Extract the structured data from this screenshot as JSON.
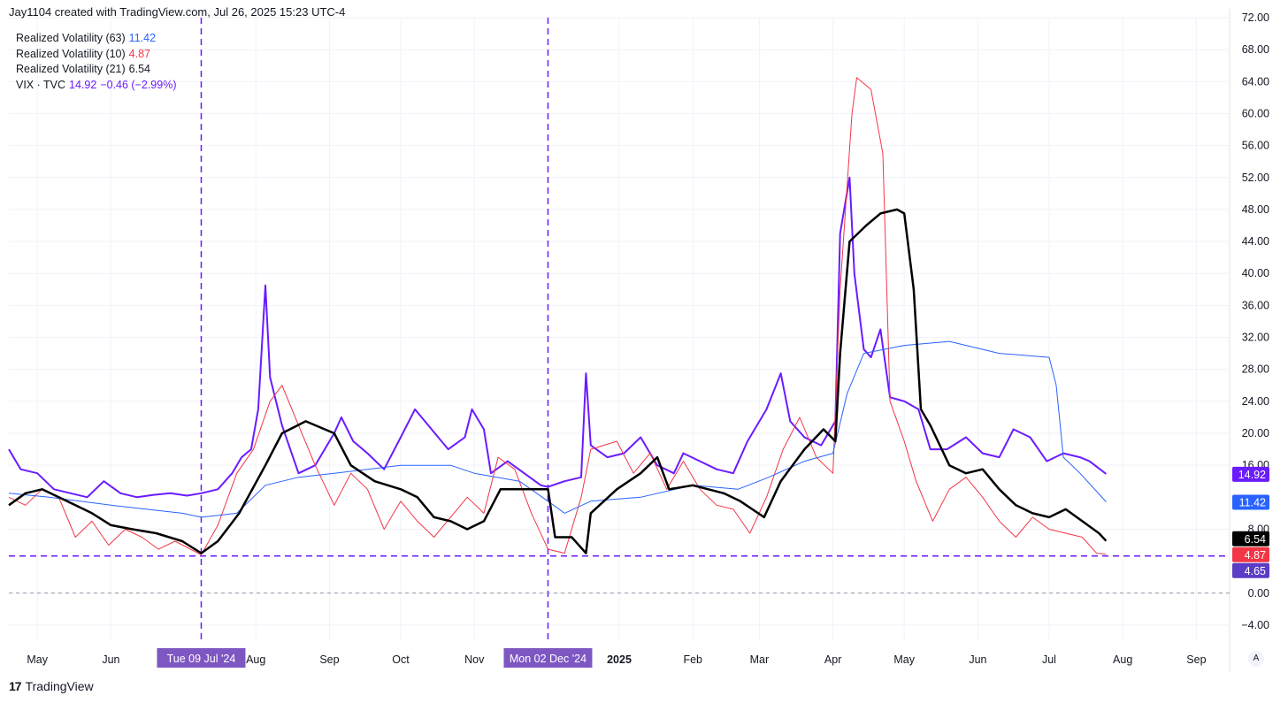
{
  "header": {
    "text": "Jay1104 created with TradingView.com, Jul 26, 2025 15:23 UTC-4"
  },
  "legend": [
    {
      "label": "Realized Volatility (63)",
      "value": "11.42",
      "color": "#2962ff"
    },
    {
      "label": "Realized Volatility (10)",
      "value": "4.87",
      "color": "#f23645"
    },
    {
      "label": "Realized Volatility (21)",
      "value": "6.54",
      "color": "#000000"
    },
    {
      "label": "VIX · TVC",
      "value": "14.92",
      "extra": "−0.46 (−2.99%)",
      "color": "#6a1bff"
    }
  ],
  "footer": {
    "brand": "TradingView",
    "logo_icon": "tradingview-logo-icon"
  },
  "auto_button": "A",
  "chart_data": {
    "type": "line",
    "y_ticks": [
      "72.00",
      "68.00",
      "64.00",
      "60.00",
      "56.00",
      "52.00",
      "48.00",
      "44.00",
      "40.00",
      "36.00",
      "32.00",
      "28.00",
      "24.00",
      "20.00",
      "16.00",
      "8.00",
      "0.00",
      "−4.00"
    ],
    "ylim": [
      -6,
      72
    ],
    "x_ticks": [
      {
        "label": "May",
        "date": "2024-05-01"
      },
      {
        "label": "Jun",
        "date": "2024-06-01"
      },
      {
        "label": "Aug",
        "date": "2024-08-01"
      },
      {
        "label": "Sep",
        "date": "2024-09-01"
      },
      {
        "label": "Oct",
        "date": "2024-10-01"
      },
      {
        "label": "Nov",
        "date": "2024-11-01"
      },
      {
        "label": "2025",
        "date": "2025-01-01",
        "bold": true
      },
      {
        "label": "Feb",
        "date": "2025-02-01"
      },
      {
        "label": "Mar",
        "date": "2025-03-01"
      },
      {
        "label": "Apr",
        "date": "2025-04-01"
      },
      {
        "label": "May",
        "date": "2025-05-01"
      },
      {
        "label": "Jun",
        "date": "2025-06-01"
      },
      {
        "label": "Jul",
        "date": "2025-07-01"
      },
      {
        "label": "Aug",
        "date": "2025-08-01"
      },
      {
        "label": "Sep",
        "date": "2025-09-01"
      }
    ],
    "xlim": [
      "2024-04-19",
      "2025-09-15"
    ],
    "markers": [
      {
        "label": "Tue 09 Jul '24",
        "date": "2024-07-09"
      },
      {
        "label": "Mon 02 Dec '24",
        "date": "2024-12-02"
      }
    ],
    "hline": {
      "value": 4.65,
      "label": "4.65",
      "color": "#6a1bff"
    },
    "zero_line": 0,
    "series": [
      {
        "name": "VIX · TVC",
        "color": "#6a1bff",
        "width": 2,
        "last_label": "14.92",
        "points": [
          [
            "2024-04-19",
            18.0
          ],
          [
            "2024-04-24",
            15.5
          ],
          [
            "2024-05-01",
            15.0
          ],
          [
            "2024-05-08",
            13.0
          ],
          [
            "2024-05-15",
            12.5
          ],
          [
            "2024-05-22",
            12.0
          ],
          [
            "2024-05-29",
            14.0
          ],
          [
            "2024-06-05",
            12.5
          ],
          [
            "2024-06-12",
            12.0
          ],
          [
            "2024-06-19",
            12.3
          ],
          [
            "2024-06-26",
            12.5
          ],
          [
            "2024-07-03",
            12.2
          ],
          [
            "2024-07-09",
            12.5
          ],
          [
            "2024-07-16",
            13.0
          ],
          [
            "2024-07-22",
            15.0
          ],
          [
            "2024-07-26",
            17.0
          ],
          [
            "2024-07-30",
            18.0
          ],
          [
            "2024-08-02",
            23.0
          ],
          [
            "2024-08-05",
            38.5
          ],
          [
            "2024-08-07",
            27.0
          ],
          [
            "2024-08-12",
            21.0
          ],
          [
            "2024-08-19",
            15.0
          ],
          [
            "2024-08-26",
            16.0
          ],
          [
            "2024-09-03",
            20.0
          ],
          [
            "2024-09-06",
            22.0
          ],
          [
            "2024-09-11",
            19.0
          ],
          [
            "2024-09-17",
            17.5
          ],
          [
            "2024-09-24",
            15.5
          ],
          [
            "2024-10-01",
            19.5
          ],
          [
            "2024-10-07",
            23.0
          ],
          [
            "2024-10-14",
            20.5
          ],
          [
            "2024-10-21",
            18.0
          ],
          [
            "2024-10-28",
            19.5
          ],
          [
            "2024-10-31",
            23.0
          ],
          [
            "2024-11-05",
            20.5
          ],
          [
            "2024-11-08",
            15.0
          ],
          [
            "2024-11-15",
            16.5
          ],
          [
            "2024-11-22",
            15.0
          ],
          [
            "2024-11-29",
            13.5
          ],
          [
            "2024-12-02",
            13.3
          ],
          [
            "2024-12-09",
            14.0
          ],
          [
            "2024-12-16",
            14.5
          ],
          [
            "2024-12-18",
            27.5
          ],
          [
            "2024-12-20",
            18.5
          ],
          [
            "2024-12-27",
            17.0
          ],
          [
            "2025-01-03",
            17.5
          ],
          [
            "2025-01-10",
            19.5
          ],
          [
            "2025-01-17",
            16.0
          ],
          [
            "2025-01-24",
            15.0
          ],
          [
            "2025-01-28",
            17.5
          ],
          [
            "2025-02-04",
            16.5
          ],
          [
            "2025-02-11",
            15.5
          ],
          [
            "2025-02-18",
            15.0
          ],
          [
            "2025-02-24",
            19.0
          ],
          [
            "2025-03-04",
            23.0
          ],
          [
            "2025-03-10",
            27.5
          ],
          [
            "2025-03-14",
            21.5
          ],
          [
            "2025-03-20",
            19.5
          ],
          [
            "2025-03-27",
            18.5
          ],
          [
            "2025-04-02",
            21.5
          ],
          [
            "2025-04-04",
            45.0
          ],
          [
            "2025-04-08",
            52.0
          ],
          [
            "2025-04-10",
            40.0
          ],
          [
            "2025-04-14",
            30.5
          ],
          [
            "2025-04-17",
            29.5
          ],
          [
            "2025-04-21",
            33.0
          ],
          [
            "2025-04-25",
            24.5
          ],
          [
            "2025-05-01",
            24.0
          ],
          [
            "2025-05-07",
            23.0
          ],
          [
            "2025-05-12",
            18.0
          ],
          [
            "2025-05-19",
            18.0
          ],
          [
            "2025-05-27",
            19.5
          ],
          [
            "2025-06-03",
            17.5
          ],
          [
            "2025-06-10",
            17.0
          ],
          [
            "2025-06-16",
            20.5
          ],
          [
            "2025-06-23",
            19.5
          ],
          [
            "2025-06-30",
            16.5
          ],
          [
            "2025-07-07",
            17.5
          ],
          [
            "2025-07-14",
            17.0
          ],
          [
            "2025-07-18",
            16.5
          ],
          [
            "2025-07-25",
            14.92
          ]
        ]
      },
      {
        "name": "Realized Volatility (10)",
        "color": "#f23645",
        "width": 1,
        "last_label": "4.87",
        "points": [
          [
            "2024-04-19",
            12.0
          ],
          [
            "2024-04-26",
            11.0
          ],
          [
            "2024-05-03",
            13.0
          ],
          [
            "2024-05-10",
            12.0
          ],
          [
            "2024-05-17",
            7.0
          ],
          [
            "2024-05-24",
            9.0
          ],
          [
            "2024-05-31",
            6.0
          ],
          [
            "2024-06-07",
            8.0
          ],
          [
            "2024-06-14",
            7.0
          ],
          [
            "2024-06-21",
            5.5
          ],
          [
            "2024-06-28",
            6.5
          ],
          [
            "2024-07-09",
            4.8
          ],
          [
            "2024-07-16",
            8.5
          ],
          [
            "2024-07-24",
            15.0
          ],
          [
            "2024-07-31",
            18.0
          ],
          [
            "2024-08-07",
            24.0
          ],
          [
            "2024-08-12",
            26.0
          ],
          [
            "2024-08-19",
            21.0
          ],
          [
            "2024-08-26",
            16.0
          ],
          [
            "2024-09-03",
            11.0
          ],
          [
            "2024-09-10",
            15.0
          ],
          [
            "2024-09-17",
            13.0
          ],
          [
            "2024-09-24",
            8.0
          ],
          [
            "2024-10-01",
            11.5
          ],
          [
            "2024-10-08",
            9.0
          ],
          [
            "2024-10-15",
            7.0
          ],
          [
            "2024-10-22",
            9.5
          ],
          [
            "2024-10-29",
            12.0
          ],
          [
            "2024-11-05",
            10.0
          ],
          [
            "2024-11-11",
            17.0
          ],
          [
            "2024-11-18",
            15.5
          ],
          [
            "2024-11-25",
            10.0
          ],
          [
            "2024-12-02",
            5.5
          ],
          [
            "2024-12-09",
            5.0
          ],
          [
            "2024-12-16",
            12.0
          ],
          [
            "2024-12-20",
            18.0
          ],
          [
            "2024-12-31",
            19.0
          ],
          [
            "2025-01-07",
            15.0
          ],
          [
            "2025-01-14",
            17.5
          ],
          [
            "2025-01-21",
            13.0
          ],
          [
            "2025-01-28",
            16.5
          ],
          [
            "2025-02-04",
            13.0
          ],
          [
            "2025-02-11",
            11.0
          ],
          [
            "2025-02-18",
            10.5
          ],
          [
            "2025-02-25",
            7.5
          ],
          [
            "2025-03-04",
            12.0
          ],
          [
            "2025-03-11",
            18.0
          ],
          [
            "2025-03-18",
            22.0
          ],
          [
            "2025-03-25",
            17.0
          ],
          [
            "2025-04-01",
            15.0
          ],
          [
            "2025-04-04",
            38.0
          ],
          [
            "2025-04-09",
            60.0
          ],
          [
            "2025-04-11",
            64.5
          ],
          [
            "2025-04-17",
            63.0
          ],
          [
            "2025-04-22",
            55.0
          ],
          [
            "2025-04-25",
            24.0
          ],
          [
            "2025-05-01",
            19.0
          ],
          [
            "2025-05-06",
            14.0
          ],
          [
            "2025-05-13",
            9.0
          ],
          [
            "2025-05-20",
            13.0
          ],
          [
            "2025-05-27",
            14.5
          ],
          [
            "2025-06-03",
            12.0
          ],
          [
            "2025-06-10",
            9.0
          ],
          [
            "2025-06-17",
            7.0
          ],
          [
            "2025-06-24",
            9.5
          ],
          [
            "2025-07-01",
            8.0
          ],
          [
            "2025-07-08",
            7.5
          ],
          [
            "2025-07-15",
            7.0
          ],
          [
            "2025-07-21",
            5.0
          ],
          [
            "2025-07-25",
            4.87
          ]
        ]
      },
      {
        "name": "Realized Volatility (63)",
        "color": "#2962ff",
        "width": 1,
        "last_label": "11.42",
        "points": [
          [
            "2024-04-19",
            12.5
          ],
          [
            "2024-05-06",
            12.0
          ],
          [
            "2024-06-01",
            11.0
          ],
          [
            "2024-07-01",
            10.0
          ],
          [
            "2024-07-09",
            9.5
          ],
          [
            "2024-07-24",
            10.0
          ],
          [
            "2024-08-05",
            13.5
          ],
          [
            "2024-08-19",
            14.5
          ],
          [
            "2024-09-03",
            15.0
          ],
          [
            "2024-10-01",
            16.0
          ],
          [
            "2024-10-22",
            16.0
          ],
          [
            "2024-11-01",
            15.0
          ],
          [
            "2024-11-20",
            14.0
          ],
          [
            "2024-12-02",
            11.5
          ],
          [
            "2024-12-09",
            10.0
          ],
          [
            "2024-12-20",
            11.5
          ],
          [
            "2025-01-10",
            12.0
          ],
          [
            "2025-02-01",
            13.5
          ],
          [
            "2025-02-20",
            13.0
          ],
          [
            "2025-03-05",
            14.5
          ],
          [
            "2025-03-20",
            16.5
          ],
          [
            "2025-04-01",
            17.5
          ],
          [
            "2025-04-07",
            25.0
          ],
          [
            "2025-04-14",
            30.0
          ],
          [
            "2025-05-01",
            31.0
          ],
          [
            "2025-05-20",
            31.5
          ],
          [
            "2025-06-10",
            30.0
          ],
          [
            "2025-07-01",
            29.5
          ],
          [
            "2025-07-04",
            26.0
          ],
          [
            "2025-07-07",
            17.0
          ],
          [
            "2025-07-14",
            15.0
          ],
          [
            "2025-07-25",
            11.42
          ]
        ]
      },
      {
        "name": "Realized Volatility (21)",
        "color": "#000000",
        "width": 2.5,
        "last_label": "6.54",
        "points": [
          [
            "2024-04-19",
            11.0
          ],
          [
            "2024-04-26",
            12.5
          ],
          [
            "2024-05-03",
            13.0
          ],
          [
            "2024-05-10",
            12.0
          ],
          [
            "2024-05-17",
            11.0
          ],
          [
            "2024-05-24",
            10.0
          ],
          [
            "2024-06-01",
            8.5
          ],
          [
            "2024-06-10",
            8.0
          ],
          [
            "2024-06-20",
            7.5
          ],
          [
            "2024-07-01",
            6.5
          ],
          [
            "2024-07-09",
            5.0
          ],
          [
            "2024-07-16",
            6.5
          ],
          [
            "2024-07-25",
            10.0
          ],
          [
            "2024-08-05",
            16.0
          ],
          [
            "2024-08-12",
            20.0
          ],
          [
            "2024-08-22",
            21.5
          ],
          [
            "2024-09-03",
            20.0
          ],
          [
            "2024-09-10",
            16.0
          ],
          [
            "2024-09-20",
            14.0
          ],
          [
            "2024-10-01",
            13.0
          ],
          [
            "2024-10-08",
            12.0
          ],
          [
            "2024-10-15",
            9.5
          ],
          [
            "2024-10-22",
            9.0
          ],
          [
            "2024-10-29",
            8.0
          ],
          [
            "2024-11-05",
            9.0
          ],
          [
            "2024-11-12",
            13.0
          ],
          [
            "2024-11-20",
            13.0
          ],
          [
            "2024-12-02",
            13.0
          ],
          [
            "2024-12-05",
            7.0
          ],
          [
            "2024-12-12",
            7.0
          ],
          [
            "2024-12-18",
            5.0
          ],
          [
            "2024-12-20",
            10.0
          ],
          [
            "2024-12-31",
            13.0
          ],
          [
            "2025-01-10",
            15.0
          ],
          [
            "2025-01-17",
            17.0
          ],
          [
            "2025-01-22",
            13.0
          ],
          [
            "2025-02-01",
            13.5
          ],
          [
            "2025-02-14",
            12.5
          ],
          [
            "2025-02-21",
            11.5
          ],
          [
            "2025-03-03",
            9.5
          ],
          [
            "2025-03-10",
            14.0
          ],
          [
            "2025-03-20",
            18.0
          ],
          [
            "2025-03-28",
            20.5
          ],
          [
            "2025-04-02",
            19.0
          ],
          [
            "2025-04-04",
            30.0
          ],
          [
            "2025-04-08",
            44.0
          ],
          [
            "2025-04-15",
            46.0
          ],
          [
            "2025-04-21",
            47.5
          ],
          [
            "2025-04-28",
            48.0
          ],
          [
            "2025-05-01",
            47.5
          ],
          [
            "2025-05-05",
            38.0
          ],
          [
            "2025-05-08",
            23.0
          ],
          [
            "2025-05-12",
            21.0
          ],
          [
            "2025-05-20",
            16.0
          ],
          [
            "2025-05-27",
            15.0
          ],
          [
            "2025-06-03",
            15.5
          ],
          [
            "2025-06-10",
            13.0
          ],
          [
            "2025-06-17",
            11.0
          ],
          [
            "2025-06-24",
            10.0
          ],
          [
            "2025-07-01",
            9.5
          ],
          [
            "2025-07-08",
            10.5
          ],
          [
            "2025-07-15",
            9.0
          ],
          [
            "2025-07-22",
            7.5
          ],
          [
            "2025-07-25",
            6.54
          ]
        ]
      }
    ]
  }
}
